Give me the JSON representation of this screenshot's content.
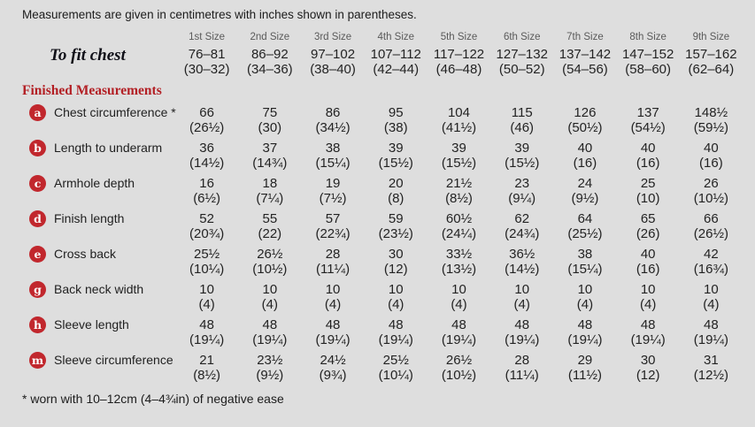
{
  "page": {
    "top_note": "Measurements are given in centimetres with inches shown in parentheses.",
    "footnote": "* worn with 10–12cm (4–4¾in) of negative ease"
  },
  "colors": {
    "background": "#dedede",
    "accent_red": "#c1272d",
    "heading_red": "#b32025",
    "header_gray": "#5a5a5a"
  },
  "table": {
    "size_headers": [
      "1st Size",
      "2nd Size",
      "3rd Size",
      "4th Size",
      "5th Size",
      "6th Size",
      "7th Size",
      "8th Size",
      "9th Size"
    ],
    "to_fit": {
      "label": "To fit chest",
      "cm": [
        "76–81",
        "86–92",
        "97–102",
        "107–112",
        "117–122",
        "127–132",
        "137–142",
        "147–152",
        "157–162"
      ],
      "in": [
        "(30–32)",
        "(34–36)",
        "(38–40)",
        "(42–44)",
        "(46–48)",
        "(50–52)",
        "(54–56)",
        "(58–60)",
        "(62–64)"
      ]
    },
    "section_heading": "Finished Measurements",
    "rows": [
      {
        "key": "a",
        "label": "Chest circumference *",
        "cm": [
          "66",
          "75",
          "86",
          "95",
          "104",
          "115",
          "126",
          "137",
          "148½"
        ],
        "in": [
          "(26½)",
          "(30)",
          "(34½)",
          "(38)",
          "(41½)",
          "(46)",
          "(50½)",
          "(54½)",
          "(59½)"
        ]
      },
      {
        "key": "b",
        "label": "Length to underarm",
        "cm": [
          "36",
          "37",
          "38",
          "39",
          "39",
          "39",
          "40",
          "40",
          "40"
        ],
        "in": [
          "(14½)",
          "(14¾)",
          "(15¼)",
          "(15½)",
          "(15½)",
          "(15½)",
          "(16)",
          "(16)",
          "(16)"
        ]
      },
      {
        "key": "c",
        "label": "Armhole depth",
        "cm": [
          "16",
          "18",
          "19",
          "20",
          "21½",
          "23",
          "24",
          "25",
          "26"
        ],
        "in": [
          "(6½)",
          "(7¼)",
          "(7½)",
          "(8)",
          "(8½)",
          "(9¼)",
          "(9½)",
          "(10)",
          "(10½)"
        ]
      },
      {
        "key": "d",
        "label": "Finish length",
        "cm": [
          "52",
          "55",
          "57",
          "59",
          "60½",
          "62",
          "64",
          "65",
          "66"
        ],
        "in": [
          "(20¾)",
          "(22)",
          "(22¾)",
          "(23½)",
          "(24¼)",
          "(24¾)",
          "(25½)",
          "(26)",
          "(26½)"
        ]
      },
      {
        "key": "e",
        "label": "Cross back",
        "cm": [
          "25½",
          "26½",
          "28",
          "30",
          "33½",
          "36½",
          "38",
          "40",
          "42"
        ],
        "in": [
          "(10¼)",
          "(10½)",
          "(11¼)",
          "(12)",
          "(13½)",
          "(14½)",
          "(15¼)",
          "(16)",
          "(16¾)"
        ]
      },
      {
        "key": "g",
        "label": "Back neck width",
        "cm": [
          "10",
          "10",
          "10",
          "10",
          "10",
          "10",
          "10",
          "10",
          "10"
        ],
        "in": [
          "(4)",
          "(4)",
          "(4)",
          "(4)",
          "(4)",
          "(4)",
          "(4)",
          "(4)",
          "(4)"
        ]
      },
      {
        "key": "h",
        "label": "Sleeve length",
        "cm": [
          "48",
          "48",
          "48",
          "48",
          "48",
          "48",
          "48",
          "48",
          "48"
        ],
        "in": [
          "(19¼)",
          "(19¼)",
          "(19¼)",
          "(19¼)",
          "(19¼)",
          "(19¼)",
          "(19¼)",
          "(19¼)",
          "(19¼)"
        ]
      },
      {
        "key": "m",
        "label": "Sleeve circumference",
        "cm": [
          "21",
          "23½",
          "24½",
          "25½",
          "26½",
          "28",
          "29",
          "30",
          "31"
        ],
        "in": [
          "(8½)",
          "(9½)",
          "(9¾)",
          "(10¼)",
          "(10½)",
          "(11¼)",
          "(11½)",
          "(12)",
          "(12½)"
        ]
      }
    ]
  }
}
